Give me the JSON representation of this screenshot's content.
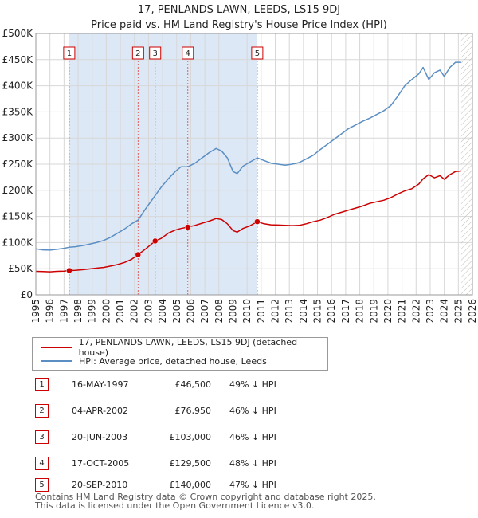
{
  "titles": {
    "line1": "17, PENLANDS LAWN, LEEDS, LS15 9DJ",
    "line2": "Price paid vs. HM Land Registry's House Price Index (HPI)"
  },
  "chart_data": {
    "type": "line",
    "title": "17, PENLANDS LAWN, LEEDS, LS15 9DJ — Price paid vs. HM Land Registry's House Price Index (HPI)",
    "xlim": [
      1995,
      2026
    ],
    "ylim": [
      0,
      500000
    ],
    "yticks": [
      0,
      50000,
      100000,
      150000,
      200000,
      250000,
      300000,
      350000,
      400000,
      450000,
      500000
    ],
    "ytick_labels": [
      "£0",
      "£50K",
      "£100K",
      "£150K",
      "£200K",
      "£250K",
      "£300K",
      "£350K",
      "£400K",
      "£450K",
      "£500K"
    ],
    "xticks": [
      1995,
      1996,
      1997,
      1998,
      1999,
      2000,
      2001,
      2002,
      2003,
      2004,
      2005,
      2006,
      2007,
      2008,
      2009,
      2010,
      2011,
      2012,
      2013,
      2014,
      2015,
      2016,
      2017,
      2018,
      2019,
      2020,
      2021,
      2022,
      2023,
      2024,
      2025,
      2026
    ],
    "xtick_labels": [
      "1995",
      "1996",
      "1997",
      "1998",
      "1999",
      "2000",
      "2001",
      "2002",
      "2003",
      "2004",
      "2005",
      "2006",
      "2007",
      "2008",
      "2009",
      "2010",
      "2011",
      "2012",
      "2013",
      "2014",
      "2015",
      "2016",
      "2017",
      "2018",
      "2019",
      "2020",
      "2021",
      "2022",
      "2023",
      "2024",
      "2025",
      "2026"
    ],
    "grid": true,
    "data_end": 2025.2,
    "colors": {
      "red": "#cc0000",
      "blue": "#5b8fc4",
      "shade": "#dde8f6",
      "grid": "#d7d7d7"
    },
    "series": [
      {
        "name": "17, PENLANDS LAWN, LEEDS, LS15 9DJ (detached house)",
        "color": "#cc0000",
        "x": [
          1995.0,
          1995.5,
          1996.0,
          1996.5,
          1997.0,
          1997.37,
          1997.8,
          1998.3,
          1998.8,
          1999.3,
          1999.8,
          2000.3,
          2000.8,
          2001.3,
          2001.8,
          2002.26,
          2002.8,
          2003.47,
          2003.9,
          2004.4,
          2004.9,
          2005.3,
          2005.79,
          2006.3,
          2006.8,
          2007.3,
          2007.8,
          2008.2,
          2008.6,
          2009.0,
          2009.3,
          2009.7,
          2010.2,
          2010.72,
          2011.2,
          2011.7,
          2012.2,
          2012.7,
          2013.2,
          2013.7,
          2014.2,
          2014.7,
          2015.2,
          2015.7,
          2016.2,
          2016.7,
          2017.2,
          2017.7,
          2018.2,
          2018.7,
          2019.2,
          2019.7,
          2020.2,
          2020.7,
          2021.2,
          2021.7,
          2022.2,
          2022.5,
          2022.9,
          2023.3,
          2023.7,
          2024.0,
          2024.4,
          2024.8,
          2025.2
        ],
        "values": [
          45000,
          44500,
          44000,
          45000,
          45500,
          46500,
          47000,
          48000,
          49500,
          51000,
          52500,
          55000,
          58000,
          62000,
          68000,
          76950,
          88000,
          103000,
          108000,
          118000,
          124000,
          127000,
          129500,
          133000,
          137000,
          141000,
          146000,
          144000,
          136000,
          123000,
          120000,
          127000,
          132000,
          140000,
          136000,
          134000,
          133500,
          133000,
          132500,
          133000,
          136000,
          140000,
          143000,
          148000,
          154000,
          158000,
          162000,
          166000,
          170000,
          175000,
          178000,
          181000,
          186000,
          193000,
          199000,
          203000,
          212000,
          222000,
          230000,
          224000,
          228000,
          221000,
          230000,
          236000,
          237000
        ]
      },
      {
        "name": "HPI: Average price, detached house, Leeds",
        "color": "#5b8fc4",
        "x": [
          1995.0,
          1995.5,
          1996.0,
          1996.5,
          1997.0,
          1997.37,
          1997.8,
          1998.3,
          1998.8,
          1999.3,
          1999.8,
          2000.3,
          2000.8,
          2001.3,
          2001.8,
          2002.26,
          2002.8,
          2003.47,
          2003.9,
          2004.4,
          2004.9,
          2005.3,
          2005.79,
          2006.3,
          2006.8,
          2007.3,
          2007.8,
          2008.2,
          2008.6,
          2009.0,
          2009.3,
          2009.7,
          2010.2,
          2010.72,
          2011.2,
          2011.7,
          2012.2,
          2012.7,
          2013.2,
          2013.7,
          2014.2,
          2014.7,
          2015.2,
          2015.7,
          2016.2,
          2016.7,
          2017.2,
          2017.7,
          2018.2,
          2018.7,
          2019.2,
          2019.7,
          2020.2,
          2020.7,
          2021.2,
          2021.7,
          2022.2,
          2022.5,
          2022.9,
          2023.3,
          2023.7,
          2024.0,
          2024.4,
          2024.8,
          2025.2
        ],
        "values": [
          88000,
          86000,
          85500,
          87000,
          89000,
          91000,
          92000,
          94000,
          97000,
          100000,
          104000,
          110000,
          118000,
          126000,
          136000,
          143000,
          165000,
          190000,
          206000,
          222000,
          236000,
          245000,
          245000,
          252000,
          262000,
          272000,
          280000,
          275000,
          262000,
          236000,
          232000,
          246000,
          254000,
          262000,
          257000,
          252000,
          250000,
          248000,
          250000,
          253000,
          260000,
          267000,
          278000,
          288000,
          298000,
          308000,
          318000,
          325000,
          332000,
          338000,
          345000,
          352000,
          362000,
          380000,
          400000,
          412000,
          423000,
          435000,
          412000,
          425000,
          430000,
          418000,
          435000,
          445000,
          445000
        ]
      }
    ],
    "sales": [
      {
        "id": "1",
        "x": 1997.37,
        "value": 46500
      },
      {
        "id": "2",
        "x": 2002.26,
        "value": 76950
      },
      {
        "id": "3",
        "x": 2003.47,
        "value": 103000
      },
      {
        "id": "4",
        "x": 2005.79,
        "value": 129500
      },
      {
        "id": "5",
        "x": 2010.72,
        "value": 140000
      }
    ]
  },
  "legend": {
    "red_label": "17, PENLANDS LAWN, LEEDS, LS15 9DJ (detached house)",
    "blue_label": "HPI: Average price, detached house, Leeds"
  },
  "table": [
    {
      "id": "1",
      "date": "16-MAY-1997",
      "price": "£46,500",
      "hpi": "49% ↓ HPI"
    },
    {
      "id": "2",
      "date": "04-APR-2002",
      "price": "£76,950",
      "hpi": "46% ↓ HPI"
    },
    {
      "id": "3",
      "date": "20-JUN-2003",
      "price": "£103,000",
      "hpi": "46% ↓ HPI"
    },
    {
      "id": "4",
      "date": "17-OCT-2005",
      "price": "£129,500",
      "hpi": "48% ↓ HPI"
    },
    {
      "id": "5",
      "date": "20-SEP-2010",
      "price": "£140,000",
      "hpi": "47% ↓ HPI"
    }
  ],
  "footer": {
    "line1": "Contains HM Land Registry data © Crown copyright and database right 2025.",
    "line2": "This data is licensed under the Open Government Licence v3.0."
  }
}
